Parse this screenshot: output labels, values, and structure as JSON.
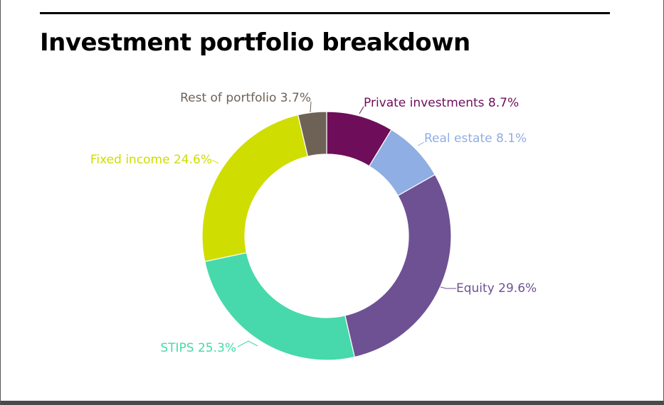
{
  "title": "Investment portfolio breakdown",
  "chart_data": {
    "type": "pie",
    "variant": "donut",
    "unit": "%",
    "slices": [
      {
        "label": "Private investments",
        "value": 8.7,
        "display": "8.7%",
        "color": "#6e0e5a"
      },
      {
        "label": "Real estate",
        "value": 8.1,
        "display": "8.1%",
        "color": "#8eaee4"
      },
      {
        "label": "Equity",
        "value": 29.6,
        "display": "29.6%",
        "color": "#6e5193"
      },
      {
        "label": "STIPS",
        "value": 25.3,
        "display": "25.3%",
        "color": "#47d9ab"
      },
      {
        "label": "Fixed income",
        "value": 24.6,
        "display": "24.6%",
        "color": "#cfdd00"
      },
      {
        "label": "Rest of portfolio",
        "value": 3.7,
        "display": "3.7%",
        "color": "#6e6256"
      }
    ]
  }
}
